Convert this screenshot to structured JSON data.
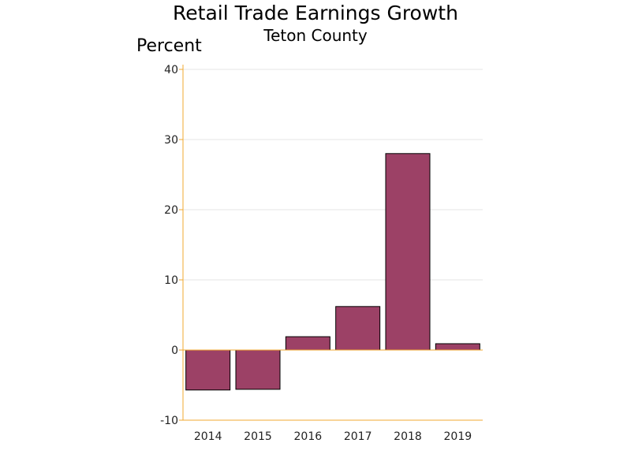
{
  "chart_data": {
    "type": "bar",
    "title": "Retail Trade Earnings Growth",
    "subtitle": "Teton County",
    "ylabel": "Percent",
    "xlabel": "",
    "categories": [
      "2014",
      "2015",
      "2016",
      "2017",
      "2018",
      "2019"
    ],
    "values": [
      -5.7,
      -5.6,
      1.9,
      6.2,
      28.0,
      0.9
    ],
    "ylim": [
      -10,
      40
    ],
    "yticks": [
      -10,
      0,
      10,
      20,
      30,
      40
    ],
    "grid": true,
    "bar_color": "#9c4166",
    "axis_color": "#f0a830",
    "grid_color": "#e6e6e6"
  }
}
